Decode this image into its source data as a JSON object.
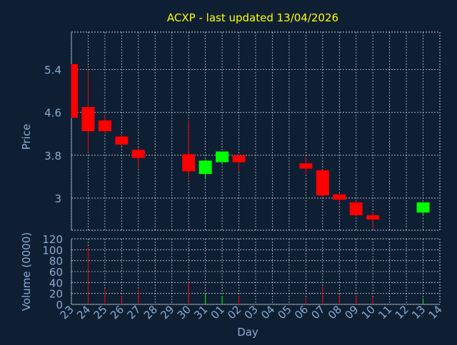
{
  "chart_data": {
    "type": "candlestick",
    "title": "ACXP - last updated 13/04/2026",
    "price_panel": {
      "ylabel": "Price",
      "ylim": [
        2.4,
        6.1
      ],
      "yticks": [
        "5.4",
        "4.6",
        "3.8",
        "3"
      ],
      "ytick_values": [
        5.4,
        4.6,
        3.8,
        3.0
      ],
      "grid": true
    },
    "volume_panel": {
      "ylabel": "Volume (0000)",
      "ylim": [
        0,
        120
      ],
      "yticks": [
        "120",
        "100",
        "80",
        "60",
        "40",
        "20",
        "0"
      ],
      "ytick_values": [
        120,
        100,
        80,
        60,
        40,
        20,
        0
      ],
      "grid": true
    },
    "xlabel": "Day",
    "categories": [
      "23",
      "24",
      "25",
      "26",
      "27",
      "28",
      "29",
      "30",
      "31",
      "01",
      "02",
      "03",
      "04",
      "05",
      "06",
      "07",
      "08",
      "09",
      "10",
      "11",
      "12",
      "13",
      "14"
    ],
    "candles": [
      {
        "day": "23",
        "open": 5.5,
        "close": 4.5,
        "high": 5.5,
        "low": 4.5,
        "volume": 0,
        "up": false
      },
      {
        "day": "24",
        "open": 4.7,
        "close": 4.25,
        "high": 5.4,
        "low": 3.85,
        "volume": 105,
        "up": false
      },
      {
        "day": "25",
        "open": 4.45,
        "close": 4.25,
        "high": 4.55,
        "low": 4.2,
        "volume": 28,
        "up": false
      },
      {
        "day": "26",
        "open": 4.15,
        "close": 4.0,
        "high": 4.2,
        "low": 3.97,
        "volume": 16,
        "up": false
      },
      {
        "day": "27",
        "open": 3.9,
        "close": 3.75,
        "high": 3.95,
        "low": 3.55,
        "volume": 26,
        "up": false
      },
      {
        "day": "30",
        "open": 3.82,
        "close": 3.5,
        "high": 4.45,
        "low": 3.35,
        "volume": 40,
        "up": false
      },
      {
        "day": "31",
        "open": 3.45,
        "close": 3.7,
        "high": 3.72,
        "low": 3.35,
        "volume": 20,
        "up": true
      },
      {
        "day": "01",
        "open": 3.67,
        "close": 3.87,
        "high": 3.87,
        "low": 3.65,
        "volume": 15,
        "up": true
      },
      {
        "day": "02",
        "open": 3.8,
        "close": 3.67,
        "high": 3.82,
        "low": 3.5,
        "volume": 16,
        "up": false
      },
      {
        "day": "06",
        "open": 3.65,
        "close": 3.55,
        "high": 3.78,
        "low": 3.45,
        "volume": 10,
        "up": false
      },
      {
        "day": "07",
        "open": 3.52,
        "close": 3.05,
        "high": 3.53,
        "low": 3.0,
        "volume": 33,
        "up": false
      },
      {
        "day": "08",
        "open": 3.07,
        "close": 2.97,
        "high": 3.1,
        "low": 2.9,
        "volume": 18,
        "up": false
      },
      {
        "day": "09",
        "open": 2.92,
        "close": 2.68,
        "high": 2.95,
        "low": 2.66,
        "volume": 17,
        "up": false
      },
      {
        "day": "10",
        "open": 2.68,
        "close": 2.6,
        "high": 2.74,
        "low": 2.44,
        "volume": 13,
        "up": false
      },
      {
        "day": "13",
        "open": 2.73,
        "close": 2.92,
        "high": 2.92,
        "low": 2.68,
        "volume": 11,
        "up": true
      }
    ]
  },
  "colors": {
    "background": "#0f1f33",
    "title": "#ffff00",
    "axis_text": "#8aaad0",
    "grid": "#b8c4d0",
    "up": "#00ff00",
    "down": "#ff0000"
  }
}
